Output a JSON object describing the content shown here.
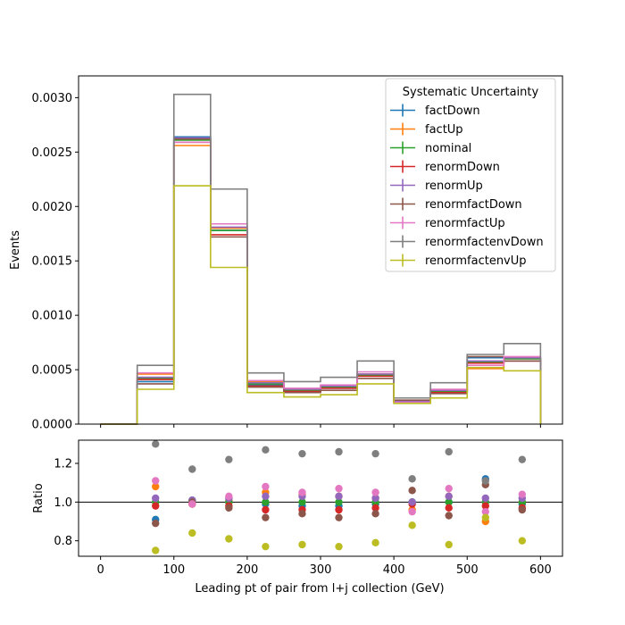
{
  "chart_data": [
    {
      "type": "line",
      "panel": "main",
      "drawstyle": "step",
      "title": "",
      "xlabel": "",
      "ylabel": "Events",
      "xlim": [
        -30,
        630
      ],
      "ylim": [
        0,
        0.0032
      ],
      "yticks": [
        "0.0000",
        "0.0005",
        "0.0010",
        "0.0015",
        "0.0020",
        "0.0025",
        "0.0030"
      ],
      "grid": false,
      "legend": {
        "title": "Systematic Uncertainty",
        "loc": "upper right"
      },
      "bin_edges": [
        50,
        100,
        150,
        200,
        250,
        300,
        350,
        400,
        450,
        500,
        550,
        600
      ],
      "series": [
        {
          "name": "factDown",
          "color": "#1f77b4",
          "values": [
            0.00039,
            0.00264,
            0.00178,
            0.00036,
            0.0003,
            0.00033,
            0.00045,
            0.00021,
            0.0003,
            0.00061,
            0.0006
          ]
        },
        {
          "name": "factUp",
          "color": "#ff7f0e",
          "values": [
            0.00046,
            0.00256,
            0.0018,
            0.00039,
            0.00032,
            0.00035,
            0.00046,
            0.0002,
            0.00031,
            0.00051,
            0.0006
          ]
        },
        {
          "name": "nominal",
          "color": "#2ca02c",
          "values": [
            0.00042,
            0.00261,
            0.00178,
            0.00037,
            0.00031,
            0.00034,
            0.00045,
            0.00021,
            0.0003,
            0.00057,
            0.0006
          ]
        },
        {
          "name": "renormDown",
          "color": "#d62728",
          "values": [
            0.00041,
            0.00259,
            0.00174,
            0.00035,
            0.0003,
            0.00033,
            0.00044,
            0.00021,
            0.00029,
            0.00056,
            0.00058
          ]
        },
        {
          "name": "renormUp",
          "color": "#9467bd",
          "values": [
            0.00043,
            0.00263,
            0.00181,
            0.00038,
            0.00032,
            0.00035,
            0.00046,
            0.00021,
            0.00031,
            0.00058,
            0.00061
          ]
        },
        {
          "name": "renormfactDown",
          "color": "#8c564b",
          "values": [
            0.00037,
            0.00262,
            0.00172,
            0.00034,
            0.00029,
            0.00031,
            0.00042,
            0.00022,
            0.00028,
            0.00062,
            0.00058
          ]
        },
        {
          "name": "renormfactUp",
          "color": "#e377c2",
          "values": [
            0.00047,
            0.00259,
            0.00184,
            0.0004,
            0.00033,
            0.00036,
            0.00048,
            0.0002,
            0.00032,
            0.00054,
            0.00062
          ]
        },
        {
          "name": "renormfactenvDown",
          "color": "#7f7f7f",
          "values": [
            0.00054,
            0.00303,
            0.00216,
            0.00047,
            0.00039,
            0.00043,
            0.00058,
            0.00024,
            0.00038,
            0.00064,
            0.00074
          ]
        },
        {
          "name": "renormfactenvUp",
          "color": "#bcbd22",
          "values": [
            0.00032,
            0.00219,
            0.00144,
            0.00029,
            0.00025,
            0.00027,
            0.00037,
            0.00019,
            0.00024,
            0.00052,
            0.00049
          ]
        }
      ]
    },
    {
      "type": "scatter",
      "panel": "ratio",
      "title": "",
      "xlabel": "Leading pt of pair from l+j collection (GeV)",
      "ylabel": "Ratio",
      "xlim": [
        -30,
        630
      ],
      "ylim": [
        0.72,
        1.32
      ],
      "xticks": [
        "0",
        "100",
        "200",
        "300",
        "400",
        "500",
        "600"
      ],
      "yticks": [
        "0.8",
        "1.0",
        "1.2"
      ],
      "reference_line": 1.0,
      "grid": false,
      "x": [
        75,
        125,
        175,
        225,
        275,
        325,
        375,
        425,
        475,
        525,
        575
      ],
      "series": [
        {
          "name": "factDown",
          "color": "#1f77b4",
          "values": [
            0.91,
            1.01,
            1.0,
            0.99,
            0.98,
            0.98,
            0.99,
            1.0,
            1.0,
            1.12,
            0.99
          ]
        },
        {
          "name": "factUp",
          "color": "#ff7f0e",
          "values": [
            1.08,
            0.99,
            1.01,
            1.05,
            1.04,
            1.03,
            1.02,
            0.96,
            1.03,
            0.9,
            1.0
          ]
        },
        {
          "name": "nominal",
          "color": "#2ca02c",
          "values": [
            1.0,
            1.0,
            1.0,
            1.0,
            1.0,
            1.0,
            1.0,
            1.0,
            1.0,
            1.0,
            1.0
          ]
        },
        {
          "name": "renormDown",
          "color": "#d62728",
          "values": [
            0.98,
            0.99,
            0.98,
            0.96,
            0.96,
            0.96,
            0.97,
            0.99,
            0.97,
            0.98,
            0.97
          ]
        },
        {
          "name": "renormUp",
          "color": "#9467bd",
          "values": [
            1.02,
            1.01,
            1.02,
            1.03,
            1.03,
            1.03,
            1.02,
            1.0,
            1.03,
            1.02,
            1.02
          ]
        },
        {
          "name": "renormfactDown",
          "color": "#8c564b",
          "values": [
            0.89,
            1.0,
            0.97,
            0.92,
            0.94,
            0.92,
            0.94,
            1.06,
            0.93,
            1.09,
            0.96
          ]
        },
        {
          "name": "renormfactUp",
          "color": "#e377c2",
          "values": [
            1.11,
            0.99,
            1.03,
            1.08,
            1.05,
            1.07,
            1.05,
            0.95,
            1.07,
            0.95,
            1.04
          ]
        },
        {
          "name": "renormfactenvDown",
          "color": "#7f7f7f",
          "values": [
            1.3,
            1.17,
            1.22,
            1.27,
            1.25,
            1.26,
            1.25,
            1.12,
            1.26,
            1.11,
            1.22
          ]
        },
        {
          "name": "renormfactenvUp",
          "color": "#bcbd22",
          "values": [
            0.75,
            0.84,
            0.81,
            0.77,
            0.78,
            0.77,
            0.79,
            0.88,
            0.78,
            0.92,
            0.8
          ]
        }
      ]
    }
  ]
}
